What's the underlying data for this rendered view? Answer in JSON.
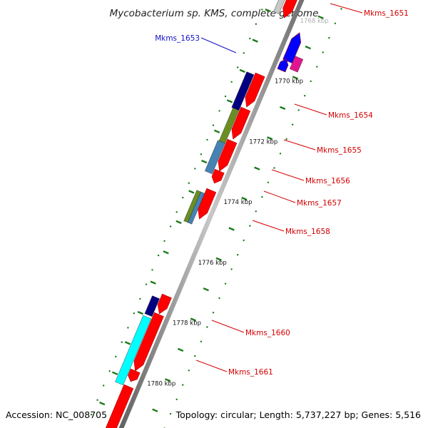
{
  "title": "Mycobacterium sp. KMS, complete genome",
  "footer": {
    "accession": "Accession: NC_008705",
    "summary": "Topology: circular; Length: 5,737,227 bp; Genes: 5,516"
  },
  "colors": {
    "backbone": "#8a8a8a",
    "tick": "#1a7a1a",
    "forward_gene": "#ff0000",
    "label_red": "#d40000",
    "label_blue": "#1010c8"
  },
  "scale": {
    "labels": [
      "1768 kbp",
      "1770 kbp",
      "1772 kbp",
      "1774 kbp",
      "1776 kbp",
      "1778 kbp",
      "1780 kbp"
    ],
    "faded_first": true
  },
  "features": [
    {
      "id": "Mkms_1651",
      "label": "Mkms_1651",
      "color": "#ff0000",
      "label_color": "#d40000"
    },
    {
      "id": "Mkms_1653",
      "label": "Mkms_1653",
      "color": "#0000ff",
      "label_color": "#1010c8"
    },
    {
      "id": "Mkms_1654",
      "label": "Mkms_1654",
      "color": "#000080",
      "label_color": "#d40000"
    },
    {
      "id": "Mkms_1655",
      "label": "Mkms_1655",
      "color": "#6b8e23",
      "label_color": "#d40000"
    },
    {
      "id": "Mkms_1656",
      "label": "Mkms_1656",
      "color": "#4682b4",
      "label_color": "#d40000"
    },
    {
      "id": "Mkms_1657",
      "label": "Mkms_1657",
      "color": "#6b8e23",
      "label_color": "#d40000"
    },
    {
      "id": "Mkms_1658",
      "label": "Mkms_1658",
      "color": "#4682b4",
      "label_color": "#d40000"
    },
    {
      "id": "Mkms_1660",
      "label": "Mkms_1660",
      "color": "#000080",
      "label_color": "#d40000"
    },
    {
      "id": "Mkms_1661",
      "label": "Mkms_1661",
      "color": "#00ffff",
      "label_color": "#d40000"
    }
  ]
}
